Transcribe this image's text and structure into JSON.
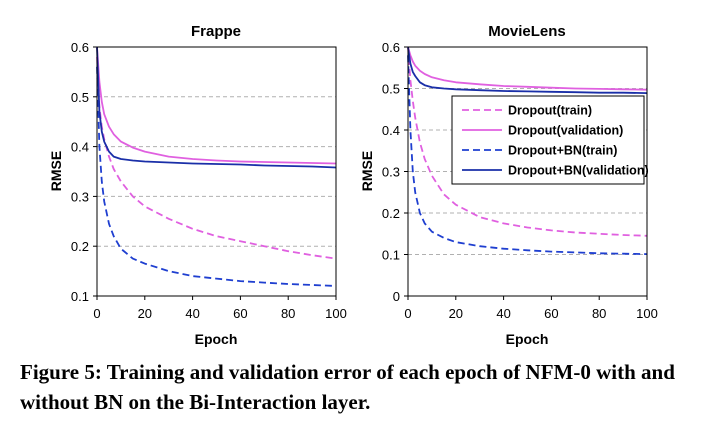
{
  "colors": {
    "dropout_train": "#e060e0",
    "dropout_validation": "#e060e0",
    "dropout_bn_train": "#1f3fd0",
    "dropout_bn_validation": "#1a2fa8",
    "grid": "#b0b0b0"
  },
  "chart_data": [
    {
      "type": "line",
      "title": "Frappe",
      "xlabel": "Epoch",
      "ylabel": "RMSE",
      "xlim": [
        0,
        100
      ],
      "ylim": [
        0.1,
        0.6
      ],
      "xticks": [
        0,
        20,
        40,
        60,
        80,
        100
      ],
      "yticks": [
        0.1,
        0.2,
        0.3,
        0.4,
        0.5,
        0.6
      ],
      "ytick_labels": [
        "0.1",
        "0.2",
        "0.3",
        "0.4",
        "0.5",
        "0.6"
      ],
      "grid": "horizontal dashed",
      "legend": "none",
      "series": [
        {
          "key": "dropout_train",
          "dash": "dashed",
          "x": [
            0,
            1,
            2,
            3,
            5,
            7,
            10,
            15,
            20,
            30,
            40,
            50,
            60,
            70,
            80,
            90,
            100
          ],
          "y": [
            0.58,
            0.48,
            0.44,
            0.415,
            0.38,
            0.355,
            0.33,
            0.3,
            0.28,
            0.255,
            0.235,
            0.22,
            0.21,
            0.2,
            0.19,
            0.182,
            0.175
          ]
        },
        {
          "key": "dropout_validation",
          "dash": "solid",
          "x": [
            0,
            1,
            2,
            3,
            5,
            7,
            10,
            15,
            20,
            30,
            40,
            50,
            60,
            70,
            80,
            90,
            100
          ],
          "y": [
            0.6,
            0.53,
            0.49,
            0.465,
            0.44,
            0.425,
            0.41,
            0.398,
            0.39,
            0.38,
            0.375,
            0.372,
            0.37,
            0.369,
            0.368,
            0.367,
            0.366
          ]
        },
        {
          "key": "dropout_bn_train",
          "dash": "dashed",
          "x": [
            0,
            1,
            2,
            3,
            5,
            7,
            10,
            15,
            20,
            30,
            40,
            50,
            60,
            70,
            80,
            90,
            100
          ],
          "y": [
            0.56,
            0.4,
            0.33,
            0.29,
            0.245,
            0.22,
            0.195,
            0.175,
            0.165,
            0.15,
            0.14,
            0.135,
            0.13,
            0.127,
            0.124,
            0.122,
            0.12
          ]
        },
        {
          "key": "dropout_bn_validation",
          "dash": "solid",
          "x": [
            0,
            1,
            2,
            3,
            5,
            7,
            10,
            15,
            20,
            30,
            40,
            50,
            60,
            70,
            80,
            90,
            100
          ],
          "y": [
            0.6,
            0.47,
            0.43,
            0.41,
            0.39,
            0.38,
            0.375,
            0.372,
            0.37,
            0.368,
            0.366,
            0.365,
            0.364,
            0.362,
            0.361,
            0.36,
            0.358
          ]
        }
      ]
    },
    {
      "type": "line",
      "title": "MovieLens",
      "xlabel": "Epoch",
      "ylabel": "RMSE",
      "xlim": [
        0,
        100
      ],
      "ylim": [
        0,
        0.6
      ],
      "xticks": [
        0,
        20,
        40,
        60,
        80,
        100
      ],
      "yticks": [
        0,
        0.1,
        0.2,
        0.3,
        0.4,
        0.5,
        0.6
      ],
      "ytick_labels": [
        "0",
        "0.1",
        "0.2",
        "0.3",
        "0.4",
        "0.5",
        "0.6"
      ],
      "grid": "horizontal dashed",
      "legend": "right, inside",
      "series": [
        {
          "key": "dropout_train",
          "name": "Dropout(train)",
          "dash": "dashed",
          "x": [
            0,
            1,
            2,
            3,
            5,
            7,
            10,
            15,
            20,
            30,
            40,
            50,
            60,
            70,
            80,
            90,
            100
          ],
          "y": [
            0.6,
            0.52,
            0.47,
            0.43,
            0.37,
            0.33,
            0.29,
            0.245,
            0.22,
            0.19,
            0.175,
            0.165,
            0.158,
            0.153,
            0.15,
            0.147,
            0.145
          ]
        },
        {
          "key": "dropout_validation",
          "name": "Dropout(validation)",
          "dash": "solid",
          "x": [
            0,
            1,
            2,
            3,
            5,
            7,
            10,
            15,
            20,
            30,
            40,
            50,
            60,
            70,
            80,
            90,
            100
          ],
          "y": [
            0.6,
            0.58,
            0.565,
            0.555,
            0.543,
            0.535,
            0.527,
            0.52,
            0.515,
            0.51,
            0.506,
            0.504,
            0.502,
            0.5,
            0.499,
            0.498,
            0.497
          ]
        },
        {
          "key": "dropout_bn_train",
          "name": "Dropout+BN(train)",
          "dash": "dashed",
          "x": [
            0,
            1,
            2,
            3,
            5,
            7,
            10,
            15,
            20,
            30,
            40,
            50,
            60,
            70,
            80,
            90,
            100
          ],
          "y": [
            0.58,
            0.4,
            0.3,
            0.25,
            0.2,
            0.175,
            0.155,
            0.14,
            0.13,
            0.12,
            0.114,
            0.11,
            0.107,
            0.105,
            0.103,
            0.102,
            0.101
          ]
        },
        {
          "key": "dropout_bn_validation",
          "name": "Dropout+BN(validation)",
          "dash": "solid",
          "x": [
            0,
            1,
            2,
            3,
            5,
            7,
            10,
            15,
            20,
            30,
            40,
            50,
            60,
            70,
            80,
            90,
            100
          ],
          "y": [
            0.6,
            0.56,
            0.54,
            0.53,
            0.515,
            0.508,
            0.503,
            0.5,
            0.498,
            0.496,
            0.494,
            0.493,
            0.492,
            0.491,
            0.49,
            0.49,
            0.489
          ]
        }
      ]
    }
  ],
  "caption": "Figure 5: Training and validation error of each epoch of NFM-0 with and without BN on the Bi-Interaction layer."
}
